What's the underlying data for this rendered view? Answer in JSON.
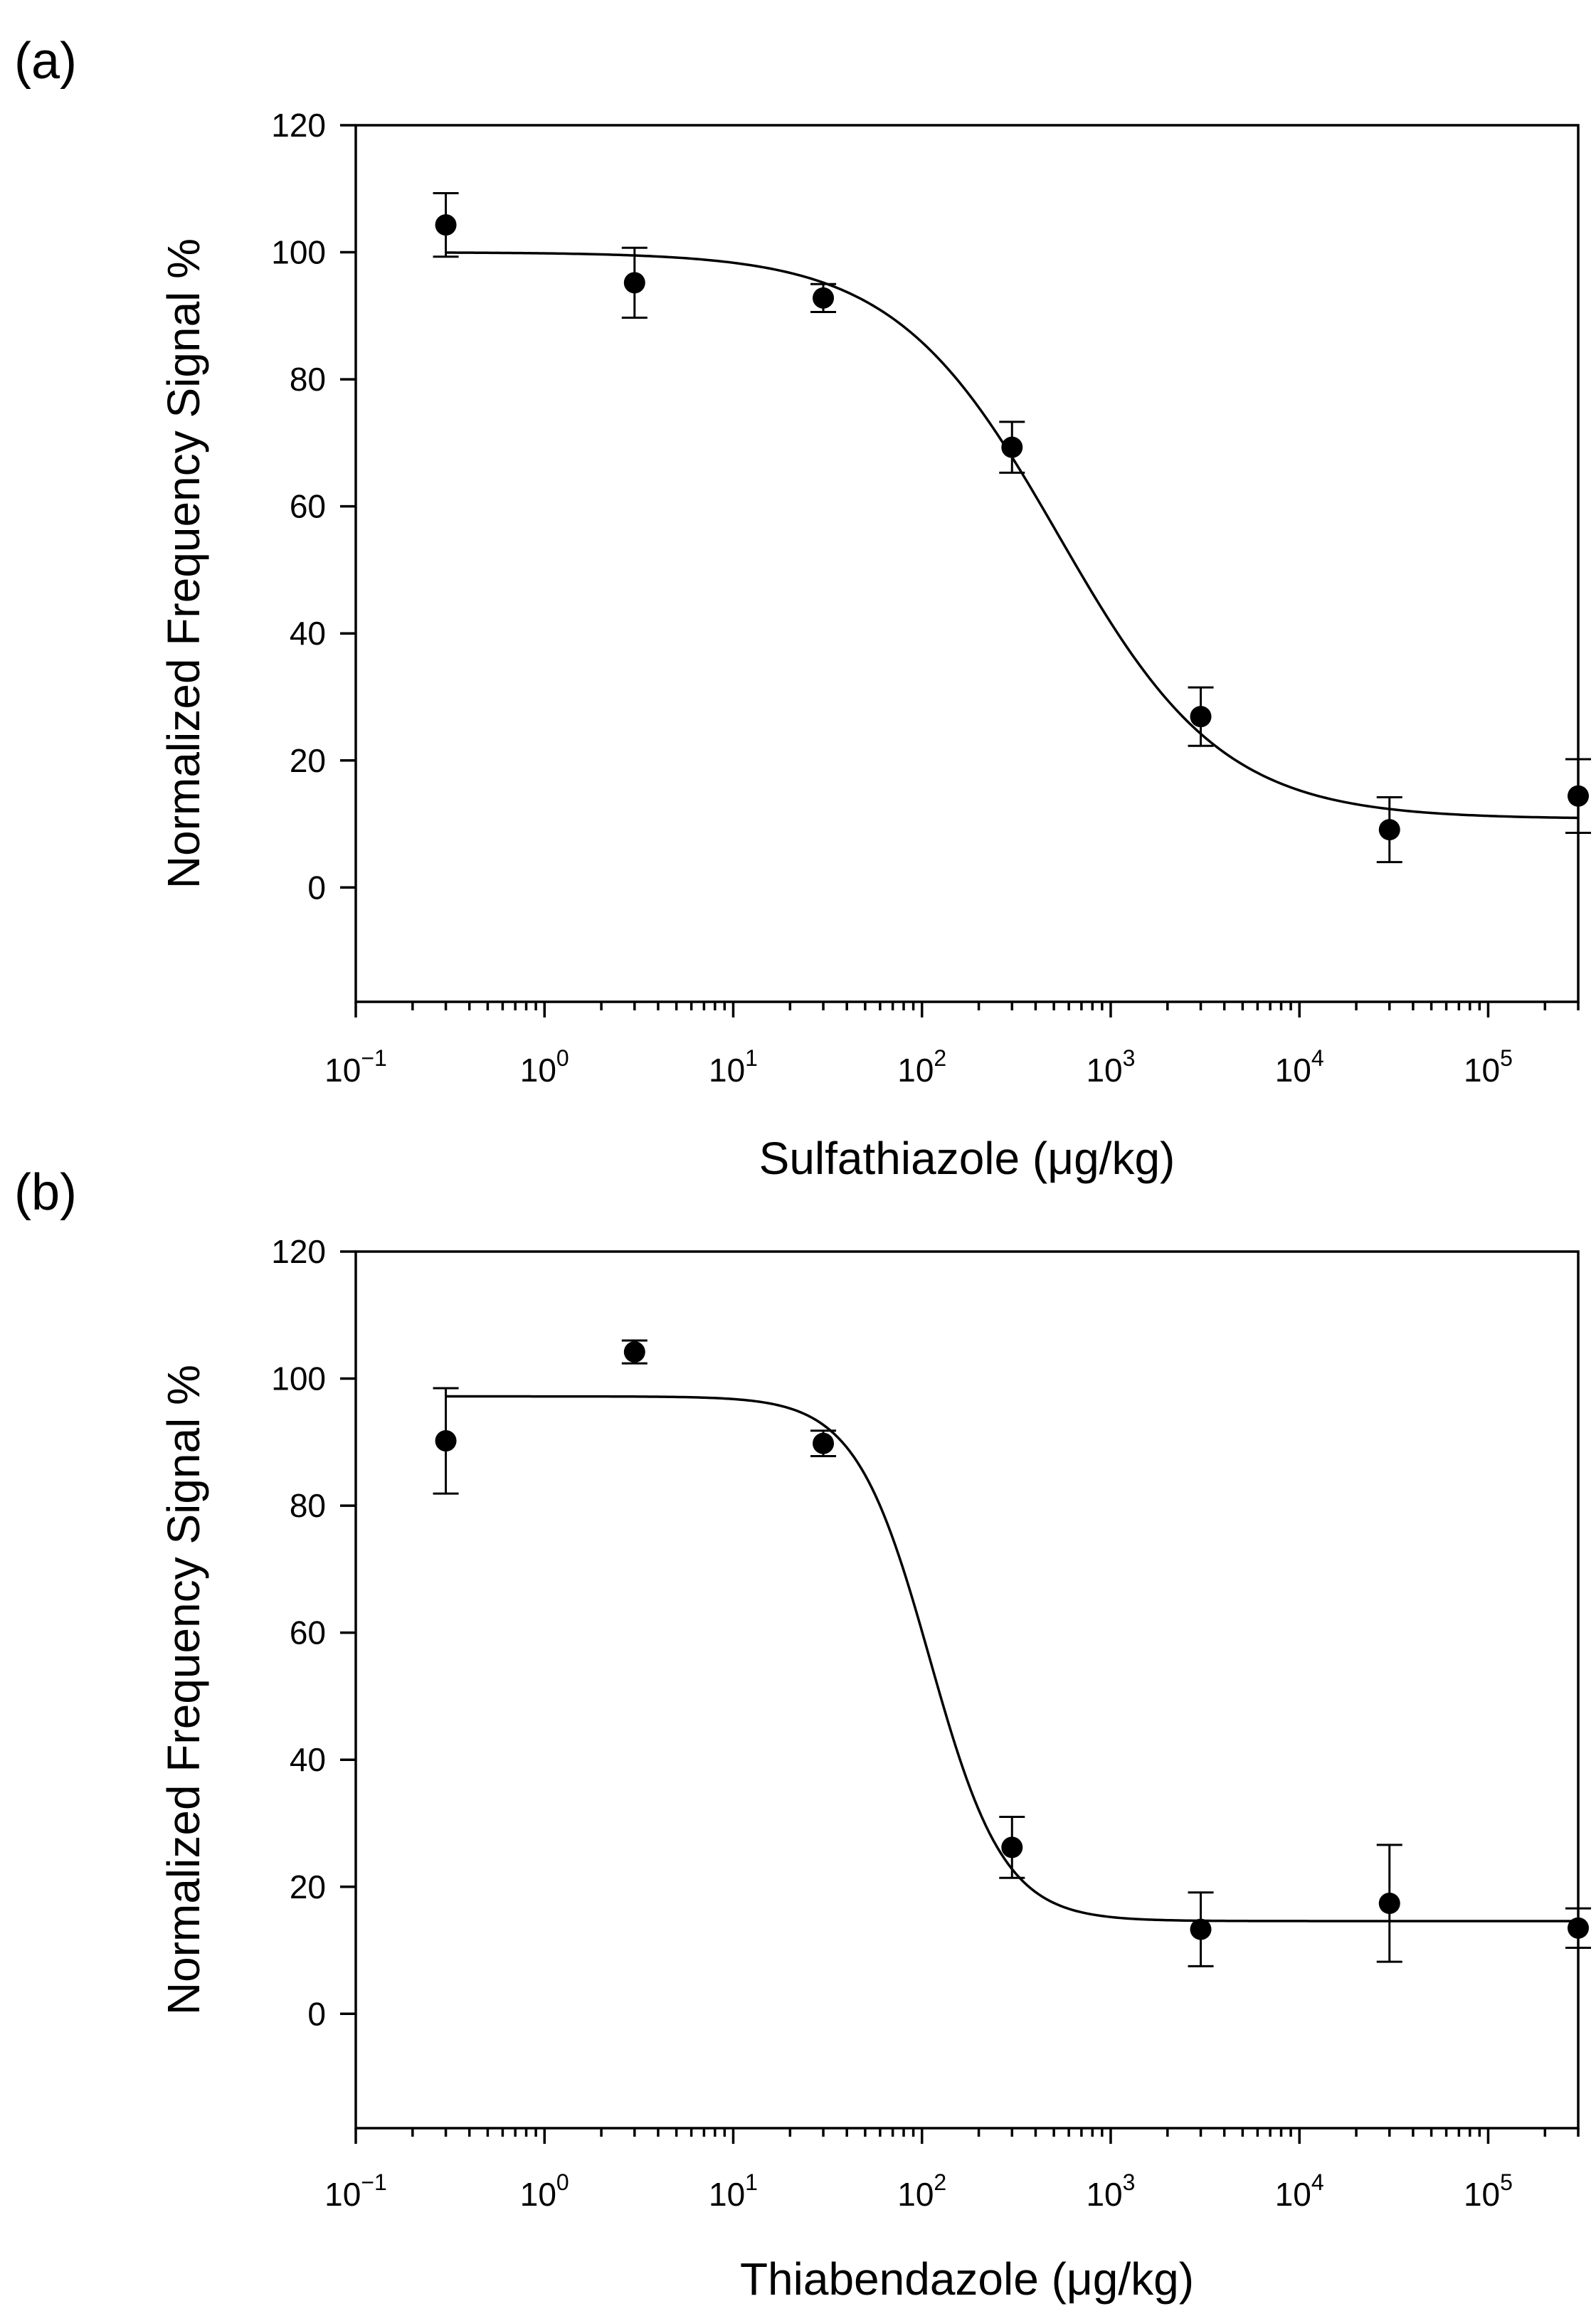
{
  "chart_data": [
    {
      "type": "scatter",
      "panel_label": "(a)",
      "title": "",
      "xlabel": "Sulfathiazole (μg/kg)",
      "ylabel": "Normalized Frequency Signal %",
      "xscale": "log",
      "xlim": [
        0.1,
        300000
      ],
      "ylim": [
        -18,
        120
      ],
      "yticks": [
        0,
        20,
        40,
        60,
        80,
        100,
        120
      ],
      "xticks": [
        {
          "value": 0.1,
          "base": "10",
          "exp": "−1"
        },
        {
          "value": 1,
          "base": "10",
          "exp": "0"
        },
        {
          "value": 10,
          "base": "10",
          "exp": "1"
        },
        {
          "value": 100,
          "base": "10",
          "exp": "2"
        },
        {
          "value": 1000,
          "base": "10",
          "exp": "3"
        },
        {
          "value": 10000,
          "base": "10",
          "exp": "4"
        },
        {
          "value": 100000,
          "base": "10",
          "exp": "5"
        }
      ],
      "grid": false,
      "points": [
        {
          "x": 0.3,
          "y": 104.3,
          "err": 5
        },
        {
          "x": 3,
          "y": 95.2,
          "err": 5.5
        },
        {
          "x": 30,
          "y": 92.8,
          "err": 2.2
        },
        {
          "x": 300,
          "y": 69.3,
          "err": 4.0
        },
        {
          "x": 3000,
          "y": 26.9,
          "err": 4.6
        },
        {
          "x": 30000,
          "y": 9.1,
          "err": 5.1
        },
        {
          "x": 300000,
          "y": 14.4,
          "err": 5.8
        }
      ],
      "fit": {
        "top": 100,
        "bottom": 10.8,
        "ic50": 530,
        "hill": 1.0
      }
    },
    {
      "type": "scatter",
      "panel_label": "(b)",
      "title": "",
      "xlabel": "Thiabendazole (μg/kg)",
      "ylabel": "Normalized Frequency Signal %",
      "xscale": "log",
      "xlim": [
        0.1,
        300000
      ],
      "ylim": [
        -18,
        120
      ],
      "yticks": [
        0,
        20,
        40,
        60,
        80,
        100,
        120
      ],
      "xticks": [
        {
          "value": 0.1,
          "base": "10",
          "exp": "−1"
        },
        {
          "value": 1,
          "base": "10",
          "exp": "0"
        },
        {
          "value": 10,
          "base": "10",
          "exp": "1"
        },
        {
          "value": 100,
          "base": "10",
          "exp": "2"
        },
        {
          "value": 1000,
          "base": "10",
          "exp": "3"
        },
        {
          "value": 10000,
          "base": "10",
          "exp": "4"
        },
        {
          "value": 100000,
          "base": "10",
          "exp": "5"
        }
      ],
      "grid": false,
      "points": [
        {
          "x": 0.3,
          "y": 90.2,
          "err": 8.3
        },
        {
          "x": 3,
          "y": 104.2,
          "err": 1.8
        },
        {
          "x": 30,
          "y": 89.8,
          "err": 2.0
        },
        {
          "x": 300,
          "y": 26.2,
          "err": 4.8
        },
        {
          "x": 3000,
          "y": 13.3,
          "err": 5.8
        },
        {
          "x": 30000,
          "y": 17.4,
          "err": 9.2
        },
        {
          "x": 300000,
          "y": 13.5,
          "err": 3.1
        }
      ],
      "fit": {
        "top": 97.2,
        "bottom": 14.6,
        "ic50": 110,
        "hill": 2.2
      }
    }
  ]
}
